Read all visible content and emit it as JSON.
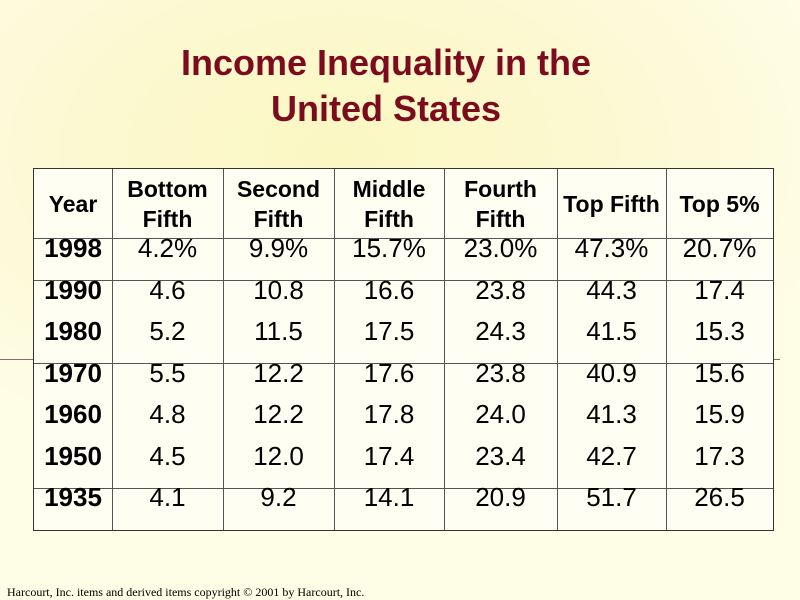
{
  "title_line1": "Income Inequality in the",
  "title_line2": "United States",
  "table": {
    "headers": [
      "Year",
      "Bottom Fifth",
      "Second Fifth",
      "Middle Fifth",
      "Fourth Fifth",
      "Top Fifth",
      "Top 5%"
    ],
    "rows": [
      [
        "1998",
        "4.2%",
        "9.9%",
        "15.7%",
        "23.0%",
        "47.3%",
        "20.7%"
      ],
      [
        "1990",
        "4.6",
        "10.8",
        "16.6",
        "23.8",
        "44.3",
        "17.4"
      ],
      [
        "1980",
        "5.2",
        "11.5",
        "17.5",
        "24.3",
        "41.5",
        "15.3"
      ],
      [
        "1970",
        "5.5",
        "12.2",
        "17.6",
        "23.8",
        "40.9",
        "15.6"
      ],
      [
        "1960",
        "4.8",
        "12.2",
        "17.8",
        "24.0",
        "41.3",
        "15.9"
      ],
      [
        "1950",
        "4.5",
        "12.0",
        "17.4",
        "23.4",
        "42.7",
        "17.3"
      ],
      [
        "1935",
        "4.1",
        "9.2",
        "14.1",
        "20.9",
        "51.7",
        "26.5"
      ]
    ]
  },
  "footer": "Harcourt, Inc. items and derived items copyright © 2001 by Harcourt, Inc."
}
